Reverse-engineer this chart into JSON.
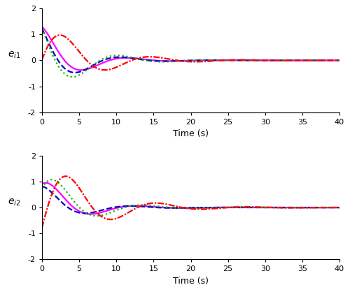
{
  "xlabel": "Time (s)",
  "ylabel1": "$e_{i1}$",
  "ylabel2": "$e_{i2}$",
  "xlim": [
    0,
    40
  ],
  "ylim": [
    -2,
    2
  ],
  "yticks": [
    -2,
    -1,
    0,
    1,
    2
  ],
  "xticks": [
    0,
    5,
    10,
    15,
    20,
    25,
    30,
    35,
    40
  ],
  "magenta_color": "#FF00FF",
  "blue_color": "#0000CD",
  "green_color": "#00BB00",
  "red_color": "#FF0000",
  "linewidth": 1.6,
  "background_color": "#ffffff",
  "e1": {
    "magenta": {
      "A": 1.3,
      "alpha": 0.22,
      "omega": 0.52,
      "phi": 0.0
    },
    "blue": {
      "A": 1.35,
      "alpha": 0.22,
      "omega": 0.52,
      "phi": 0.45
    },
    "green": {
      "A": 1.55,
      "alpha": 0.2,
      "omega": 0.52,
      "phi": 0.65
    },
    "red": {
      "A": 1.5,
      "alpha": 0.16,
      "omega": 0.52,
      "phi": -1.55
    }
  },
  "e2": {
    "magenta": {
      "A": 1.15,
      "alpha": 0.22,
      "omega": 0.52,
      "phi": -0.65
    },
    "blue": {
      "A": 0.85,
      "alpha": 0.22,
      "omega": 0.52,
      "phi": -0.25
    },
    "green": {
      "A": 1.5,
      "alpha": 0.2,
      "omega": 0.52,
      "phi": -1.05
    },
    "red": {
      "A": 2.1,
      "alpha": 0.16,
      "omega": 0.52,
      "phi": -1.95
    }
  }
}
